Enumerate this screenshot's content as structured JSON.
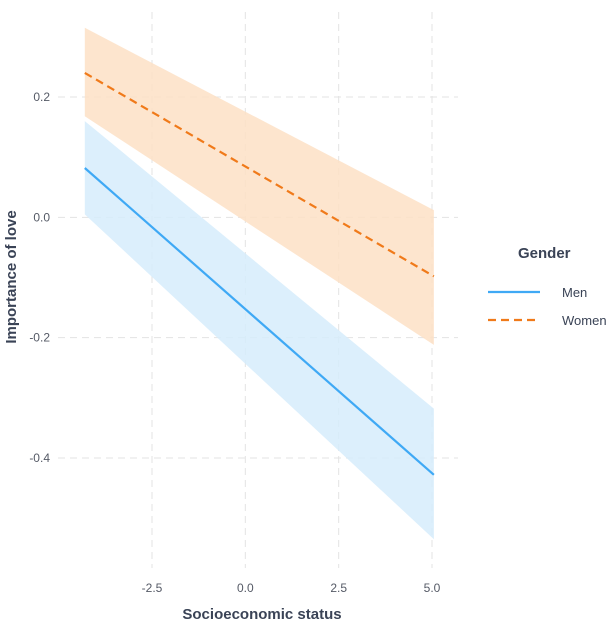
{
  "chart_data": {
    "type": "line",
    "xlabel": "Socioeconomic status",
    "ylabel": "Importance of love",
    "xlim": [
      -4.2,
      5.2
    ],
    "ylim": [
      -0.58,
      0.35
    ],
    "x_ticks": [
      -2.5,
      0.0,
      2.5,
      5.0
    ],
    "x_tick_labels": [
      "-2.5",
      "0.0",
      "2.5",
      "5.0"
    ],
    "y_ticks": [
      -0.4,
      -0.2,
      0.0,
      0.2
    ],
    "y_tick_labels": [
      "-0.4",
      "-0.2",
      "0.0",
      "0.2"
    ],
    "grid": true,
    "legend": {
      "title": "Gender",
      "placement": "right"
    },
    "series": [
      {
        "name": "Men",
        "color": "#3fa9f5",
        "band_color": "#d6ecfb",
        "dash": "solid",
        "x": [
          -4.3,
          5.05
        ],
        "y": [
          0.082,
          -0.428
        ],
        "lower": [
          0.005,
          -0.535
        ],
        "upper": [
          0.16,
          -0.318
        ]
      },
      {
        "name": "Women",
        "color": "#f07a1a",
        "band_color": "#fde0c6",
        "dash": "dashed",
        "x": [
          -4.3,
          5.05
        ],
        "y": [
          0.24,
          -0.098
        ],
        "lower": [
          0.168,
          -0.212
        ],
        "upper": [
          0.315,
          0.012
        ]
      }
    ]
  }
}
